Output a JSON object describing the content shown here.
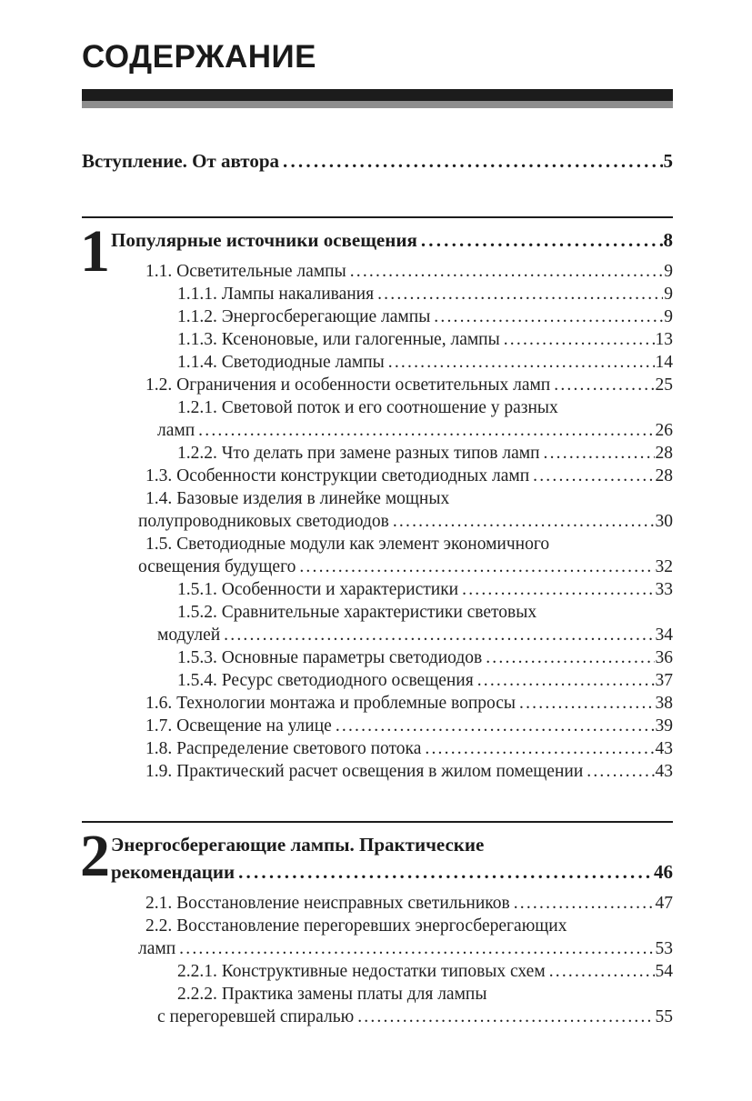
{
  "header": {
    "title": "СОДЕРЖАНИЕ"
  },
  "intro": {
    "label": "Вступление. От автора",
    "page": "5"
  },
  "colors": {
    "bar_black": "#1c1c1c",
    "bar_gray": "#8e8e8e",
    "text": "#1c1c1c"
  },
  "sections": [
    {
      "number": "1",
      "title_lines": [
        "Популярные источники освещения"
      ],
      "page": "8",
      "entries": [
        {
          "level": 1,
          "lines": [
            "1.1. Осветительные лампы"
          ],
          "page": "9"
        },
        {
          "level": 2,
          "lines": [
            "1.1.1. Лампы накаливания"
          ],
          "page": "9"
        },
        {
          "level": 2,
          "lines": [
            "1.1.2. Энергосберегающие лампы"
          ],
          "page": "9"
        },
        {
          "level": 2,
          "lines": [
            "1.1.3. Ксеноновые, или галогенные, лампы"
          ],
          "page": "13"
        },
        {
          "level": 2,
          "lines": [
            "1.1.4. Светодиодные лампы"
          ],
          "page": "14"
        },
        {
          "level": 1,
          "lines": [
            "1.2. Ограничения и особенности осветительных ламп"
          ],
          "page": "25"
        },
        {
          "level": 2,
          "lines": [
            "1.2.1. Световой поток и его соотношение у разных",
            "ламп"
          ],
          "page": "26"
        },
        {
          "level": 2,
          "lines": [
            "1.2.2. Что делать при замене разных типов ламп"
          ],
          "page": "28"
        },
        {
          "level": 1,
          "lines": [
            "1.3. Особенности конструкции светодиодных ламп"
          ],
          "page": "28"
        },
        {
          "level": 1,
          "lines": [
            "1.4. Базовые изделия в линейке мощных",
            "полупроводниковых светодиодов"
          ],
          "page": "30"
        },
        {
          "level": 1,
          "lines": [
            "1.5. Светодиодные модули как элемент экономичного",
            "освещения будущего"
          ],
          "page": "32"
        },
        {
          "level": 2,
          "lines": [
            "1.5.1. Особенности и характеристики"
          ],
          "page": "33"
        },
        {
          "level": 2,
          "lines": [
            "1.5.2. Сравнительные характеристики световых",
            "модулей"
          ],
          "page": "34"
        },
        {
          "level": 2,
          "lines": [
            "1.5.3. Основные параметры светодиодов"
          ],
          "page": "36"
        },
        {
          "level": 2,
          "lines": [
            "1.5.4. Ресурс светодиодного освещения"
          ],
          "page": "37"
        },
        {
          "level": 1,
          "lines": [
            "1.6. Технологии монтажа и проблемные вопросы"
          ],
          "page": "38"
        },
        {
          "level": 1,
          "lines": [
            "1.7. Освещение на улице"
          ],
          "page": "39"
        },
        {
          "level": 1,
          "lines": [
            "1.8. Распределение светового потока"
          ],
          "page": "43"
        },
        {
          "level": 1,
          "lines": [
            "1.9. Практический расчет освещения в жилом помещении"
          ],
          "page": "43"
        }
      ]
    },
    {
      "number": "2",
      "title_lines": [
        "Энергосберегающие лампы. Практические",
        "рекомендации"
      ],
      "page": "46",
      "entries": [
        {
          "level": 1,
          "lines": [
            "2.1. Восстановление неисправных светильников"
          ],
          "page": "47"
        },
        {
          "level": 1,
          "lines": [
            "2.2. Восстановление перегоревших энергосберегающих",
            "ламп"
          ],
          "page": "53"
        },
        {
          "level": 2,
          "lines": [
            "2.2.1. Конструктивные недостатки типовых схем"
          ],
          "page": "54"
        },
        {
          "level": 2,
          "lines": [
            "2.2.2. Практика замены платы для лампы",
            "с перегоревшей спиралью"
          ],
          "page": "55"
        }
      ]
    }
  ]
}
